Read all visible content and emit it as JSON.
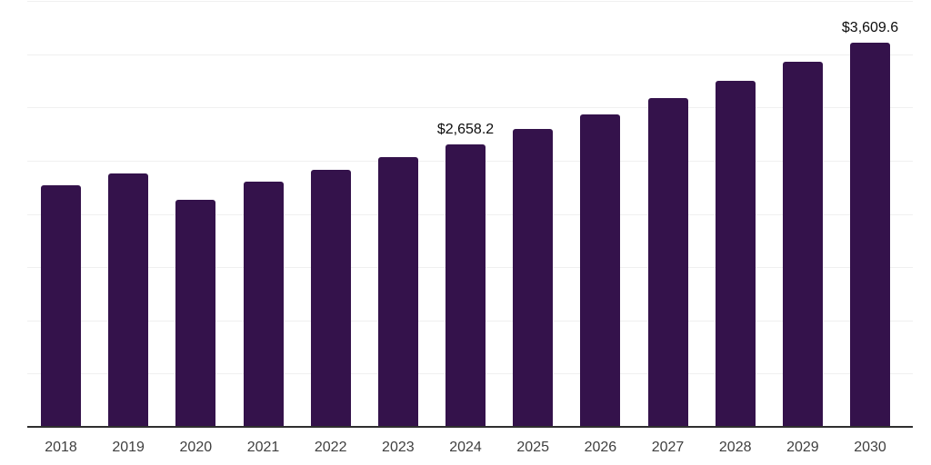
{
  "chart_data": {
    "type": "bar",
    "title": "",
    "xlabel": "",
    "ylabel": "",
    "categories": [
      "2018",
      "2019",
      "2020",
      "2021",
      "2022",
      "2023",
      "2024",
      "2025",
      "2026",
      "2027",
      "2028",
      "2029",
      "2030"
    ],
    "values": [
      2271.5,
      2382.5,
      2134.9,
      2305.6,
      2416.7,
      2536.2,
      2658.2,
      2801.0,
      2937.6,
      3091.3,
      3253.6,
      3432.9,
      3609.6
    ],
    "labeled_points": [
      {
        "category": "2024",
        "label": "$2,658.2"
      },
      {
        "category": "2030",
        "label": "$3,609.6"
      }
    ],
    "ylim": [
      0,
      4005
    ],
    "grid": true,
    "gridline_count": 8,
    "legend": "none",
    "colors": {
      "bar": "#34124b",
      "axis": "#2f2f2f",
      "gridline": "#f0f0f0",
      "value_label": "#0d0d0d",
      "tick_label": "#3f3f3f",
      "background": "#ffffff"
    }
  }
}
